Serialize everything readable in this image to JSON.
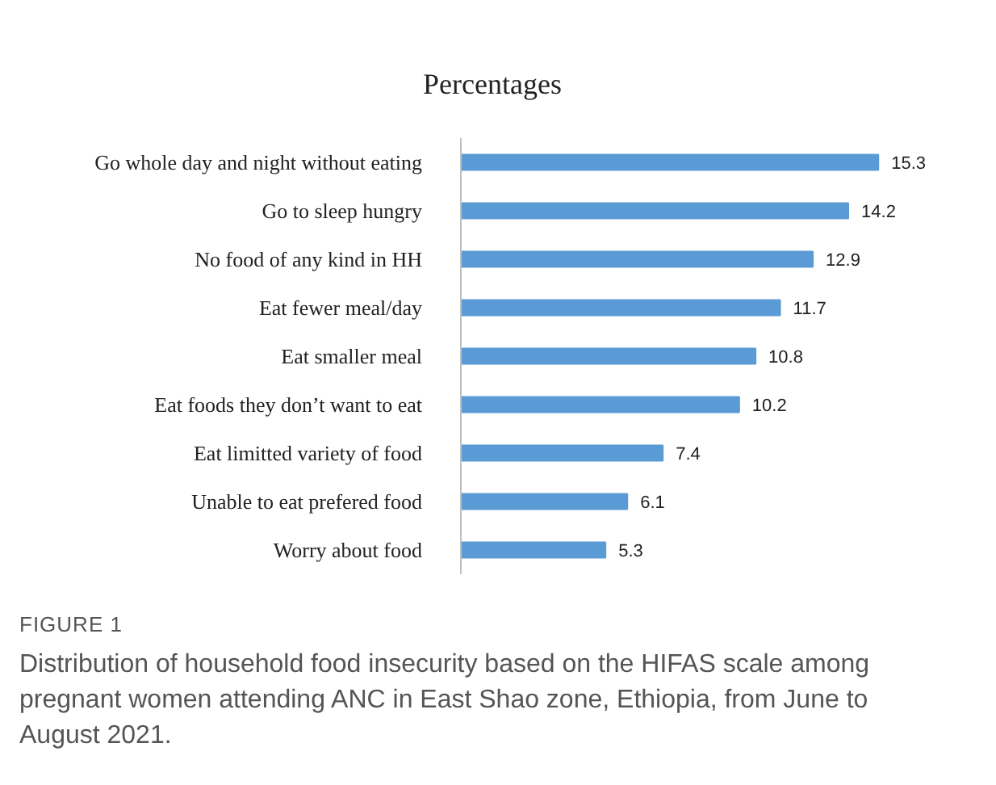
{
  "chart_data": {
    "type": "bar",
    "orientation": "horizontal",
    "title": "Percentages",
    "categories": [
      "Go whole day and night without eating",
      "Go to sleep hungry",
      "No food of any kind in HH",
      "Eat fewer meal/day",
      "Eat smaller meal",
      "Eat foods they don’t want to eat",
      "Eat limitted variety of food",
      "Unable to eat prefered food",
      "Worry about food"
    ],
    "values": [
      15.3,
      14.2,
      12.9,
      11.7,
      10.8,
      10.2,
      7.4,
      6.1,
      5.3
    ],
    "color": "#5b9bd5",
    "data_labels": true,
    "tick_labels": "y",
    "grid": false,
    "annotations": [
      "FIGURE 1",
      "Distribution of household food insecurity based on the HIFAS scale among pregnant women attending ANC in East Shao zone, Ethiopia, from June to August 2021."
    ]
  }
}
